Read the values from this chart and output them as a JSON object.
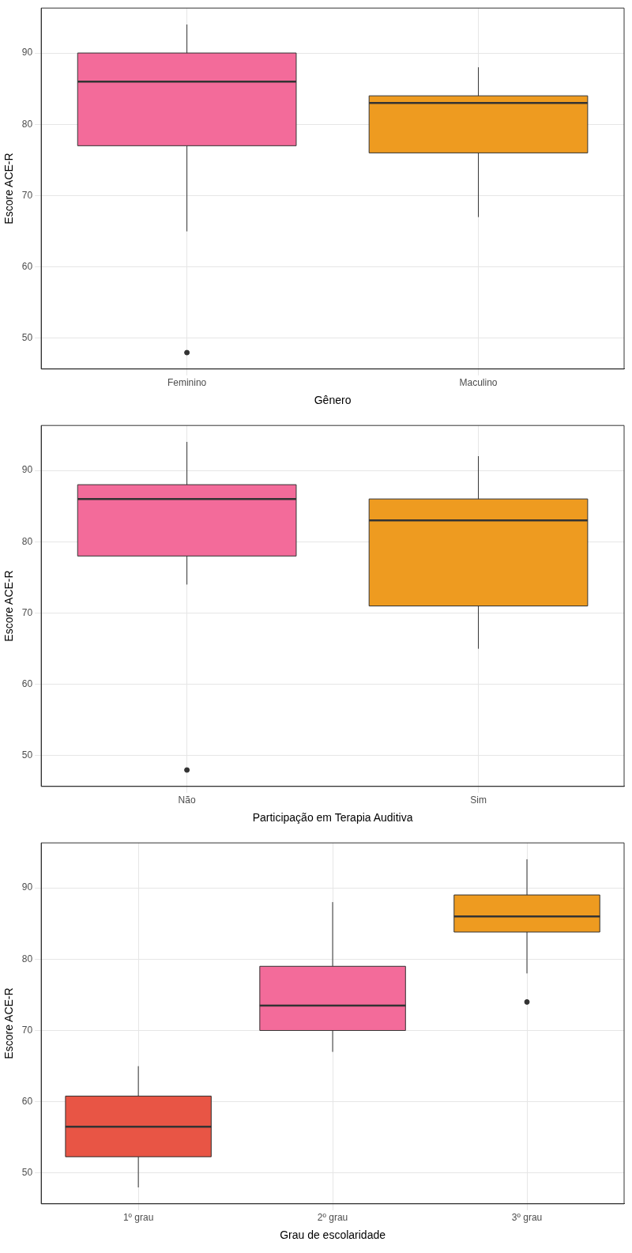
{
  "chart_data": [
    {
      "type": "box",
      "xlabel": "Gênero",
      "ylabel": "Escore ACE-R",
      "categories": [
        "Feminino",
        "Maculino"
      ],
      "colors": [
        "#f36b9a",
        "#ee9b20"
      ],
      "ylim": [
        45.7,
        96.3
      ],
      "yticks": [
        50,
        60,
        70,
        80,
        90
      ],
      "grid": true,
      "legend": false,
      "boxes": [
        {
          "low": 65,
          "q1": 77,
          "median": 86,
          "q3": 90,
          "high": 94,
          "outliers": [
            48
          ]
        },
        {
          "low": 67,
          "q1": 76,
          "median": 83,
          "q3": 84,
          "high": 88
        }
      ]
    },
    {
      "type": "box",
      "xlabel": "Participação em Terapia Auditiva",
      "ylabel": "Escore ACE-R",
      "categories": [
        "Não",
        "Sim"
      ],
      "colors": [
        "#f36b9a",
        "#ee9b20"
      ],
      "ylim": [
        45.7,
        96.3
      ],
      "yticks": [
        50,
        60,
        70,
        80,
        90
      ],
      "grid": true,
      "legend": false,
      "boxes": [
        {
          "low": 74,
          "q1": 78,
          "median": 86,
          "q3": 88,
          "high": 94,
          "outliers": [
            48
          ]
        },
        {
          "low": 65,
          "q1": 71,
          "median": 83,
          "q3": 86,
          "high": 92
        }
      ]
    },
    {
      "type": "box",
      "xlabel": "Grau de escolaridade",
      "ylabel": "Escore ACE-R",
      "categories": [
        "1º grau",
        "2º grau",
        "3º grau"
      ],
      "colors": [
        "#e85545",
        "#f36b9a",
        "#ee9b20"
      ],
      "ylim": [
        45.7,
        96.3
      ],
      "yticks": [
        50,
        60,
        70,
        80,
        90
      ],
      "grid": true,
      "legend": false,
      "boxes": [
        {
          "low": 48,
          "q1": 52.3,
          "median": 56.5,
          "q3": 60.8,
          "high": 65
        },
        {
          "low": 67,
          "q1": 70,
          "median": 73.5,
          "q3": 79,
          "high": 88
        },
        {
          "low": 78,
          "q1": 83.8,
          "median": 86,
          "q3": 89,
          "high": 94,
          "outliers": [
            74
          ]
        }
      ]
    }
  ]
}
